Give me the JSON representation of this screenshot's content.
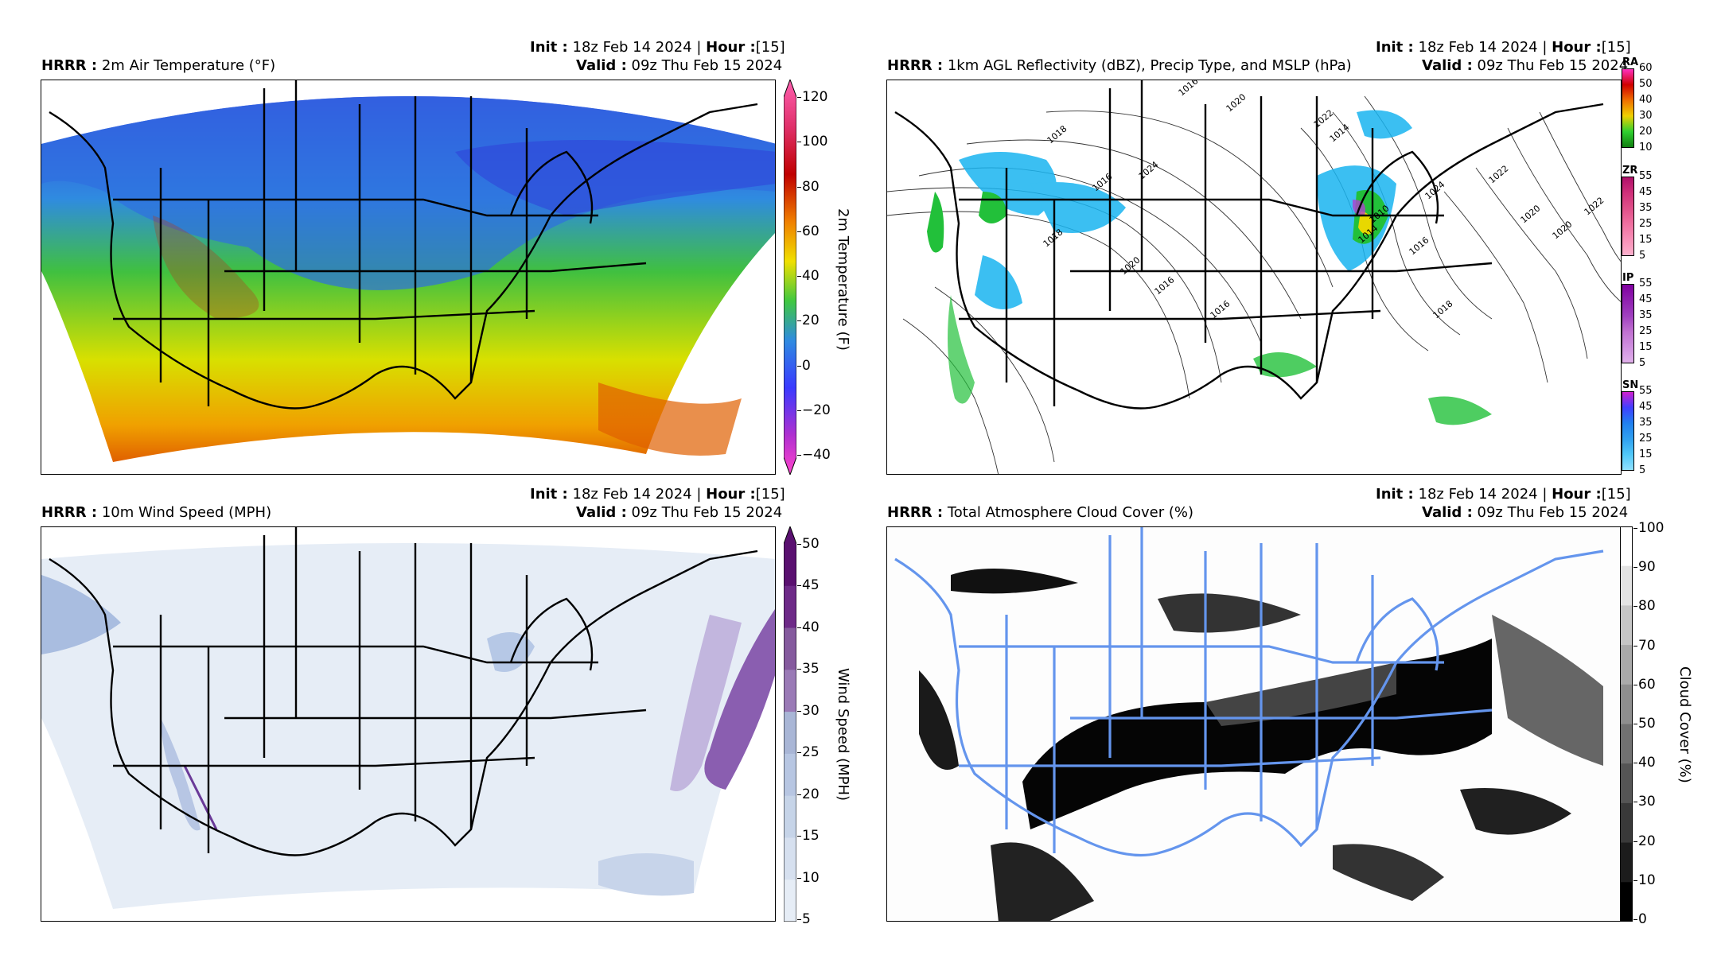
{
  "panels": [
    {
      "model": "HRRR :",
      "title": "2m Air Temperature (°F)",
      "init_label": "Init :",
      "init_value": "18z Feb 14 2024 |",
      "hour_label": "Hour :",
      "hour_value": "[15]",
      "valid_label": "Valid :",
      "valid_value": "09z Thu Feb 15 2024",
      "colorbar_label": "2m Temperature (F)",
      "colorbar_ticks": [
        "120",
        "100",
        "80",
        "60",
        "40",
        "20",
        "0",
        "−20",
        "−40"
      ]
    },
    {
      "model": "HRRR :",
      "title": "1km AGL Reflectivity (dBZ), Precip Type, and MSLP (hPa)",
      "init_label": "Init :",
      "init_value": "18z Feb 14 2024 |",
      "hour_label": "Hour :",
      "hour_value": "[15]",
      "valid_label": "Valid :",
      "valid_value": "09z Thu Feb 15 2024",
      "precip_bars": [
        {
          "name": "RA",
          "ticks": [
            "60",
            "50",
            "40",
            "30",
            "20",
            "10"
          ]
        },
        {
          "name": "ZR",
          "ticks": [
            "55",
            "45",
            "35",
            "25",
            "15",
            "5"
          ]
        },
        {
          "name": "IP",
          "ticks": [
            "55",
            "45",
            "35",
            "25",
            "15",
            "5"
          ]
        },
        {
          "name": "SN",
          "ticks": [
            "55",
            "45",
            "35",
            "25",
            "15",
            "5"
          ]
        }
      ],
      "isobar_labels": [
        "1016",
        "1014",
        "1020",
        "1018",
        "1024",
        "1016",
        "1020",
        "1016",
        "1018",
        "1016",
        "1022",
        "1024",
        "1022",
        "1020",
        "1016",
        "1020",
        "1022",
        "1018",
        "1014",
        "1010"
      ]
    },
    {
      "model": "HRRR :",
      "title": "10m Wind Speed (MPH)",
      "init_label": "Init :",
      "init_value": "18z Feb 14 2024 |",
      "hour_label": "Hour :",
      "hour_value": "[15]",
      "valid_label": "Valid :",
      "valid_value": "09z Thu Feb 15 2024",
      "colorbar_label": "Wind Speed (MPH)",
      "colorbar_ticks": [
        "50",
        "45",
        "40",
        "35",
        "30",
        "25",
        "20",
        "15",
        "10",
        "5"
      ]
    },
    {
      "model": "HRRR :",
      "title": "Total Atmosphere Cloud Cover (%)",
      "init_label": "Init :",
      "init_value": "18z Feb 14 2024 |",
      "hour_label": "Hour :",
      "hour_value": "[15]",
      "valid_label": "Valid :",
      "valid_value": "09z Thu Feb 15 2024",
      "colorbar_label": "Cloud Cover (%)",
      "colorbar_ticks": [
        "100",
        "90",
        "80",
        "70",
        "60",
        "50",
        "40",
        "30",
        "20",
        "10",
        "0"
      ]
    }
  ],
  "colors": {
    "border_blue": "#6495ed",
    "temp_gradient": [
      "#ff44cc",
      "#d030d0",
      "#3a3aff",
      "#2f8be0",
      "#40c840",
      "#f0e000",
      "#f08000",
      "#c00000",
      "#ff60b0"
    ],
    "wind_gradient": [
      "#f2f6fb",
      "#c6d4e8",
      "#8da6d0",
      "#8a5eb0",
      "#5a1070"
    ],
    "cloud_gradient": [
      "#000000",
      "#ffffff"
    ]
  }
}
